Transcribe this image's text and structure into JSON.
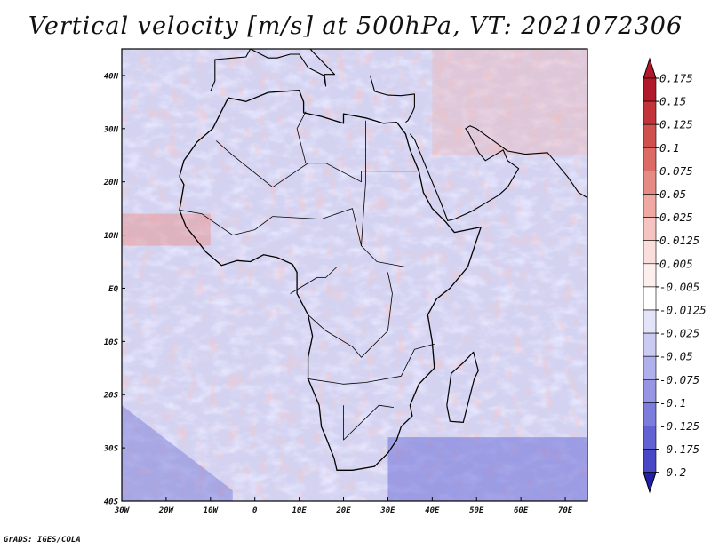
{
  "title": "Vertical velocity [m/s] at 500hPa, VT: 2021072306",
  "credit": "GrADS: IGES/COLA",
  "map": {
    "region": "Africa",
    "field": "Vertical velocity at 500hPa",
    "units": "m/s",
    "lon_range": [
      -30,
      75
    ],
    "lat_range": [
      -40,
      45
    ],
    "lat_ticks": [
      {
        "value": 40,
        "label": "40N"
      },
      {
        "value": 30,
        "label": "30N"
      },
      {
        "value": 20,
        "label": "20N"
      },
      {
        "value": 10,
        "label": "10N"
      },
      {
        "value": 0,
        "label": "EQ"
      },
      {
        "value": -10,
        "label": "10S"
      },
      {
        "value": -20,
        "label": "20S"
      },
      {
        "value": -30,
        "label": "30S"
      },
      {
        "value": -40,
        "label": "40S"
      }
    ],
    "lon_ticks": [
      {
        "value": -30,
        "label": "30W"
      },
      {
        "value": -20,
        "label": "20W"
      },
      {
        "value": -10,
        "label": "10W"
      },
      {
        "value": 0,
        "label": "0"
      },
      {
        "value": 10,
        "label": "10E"
      },
      {
        "value": 20,
        "label": "20E"
      },
      {
        "value": 30,
        "label": "30E"
      },
      {
        "value": 40,
        "label": "40E"
      },
      {
        "value": 50,
        "label": "50E"
      },
      {
        "value": 60,
        "label": "60E"
      },
      {
        "value": 70,
        "label": "70E"
      }
    ]
  },
  "colorbar": {
    "levels": [
      {
        "label": "0.175",
        "color": "#b2182b"
      },
      {
        "label": "0.15",
        "color": "#c2333a"
      },
      {
        "label": "0.125",
        "color": "#d0504d"
      },
      {
        "label": "0.1",
        "color": "#dc6b66"
      },
      {
        "label": "0.075",
        "color": "#e68a84"
      },
      {
        "label": "0.05",
        "color": "#efa8a2"
      },
      {
        "label": "0.025",
        "color": "#f5c4c0"
      },
      {
        "label": "0.0125",
        "color": "#f9dedb"
      },
      {
        "label": "0.005",
        "color": "#fcefee"
      },
      {
        "label": "-0.005",
        "color": "#ffffff"
      },
      {
        "label": "-0.0125",
        "color": "#e4e4f8"
      },
      {
        "label": "-0.025",
        "color": "#cacaf2"
      },
      {
        "label": "-0.05",
        "color": "#b0b0ec"
      },
      {
        "label": "-0.075",
        "color": "#9696e4"
      },
      {
        "label": "-0.1",
        "color": "#7c7cdc"
      },
      {
        "label": "-0.125",
        "color": "#6262d2"
      },
      {
        "label": "-0.175",
        "color": "#4848c6"
      },
      {
        "label": "-0.2",
        "color": "#3030b8"
      }
    ],
    "bottom_color": "#2020a8",
    "top_color": "#b2182b"
  },
  "colors": {
    "ocean_base": "#d3d3f1",
    "land_base": "#dedaf1",
    "coast": "#000000"
  }
}
